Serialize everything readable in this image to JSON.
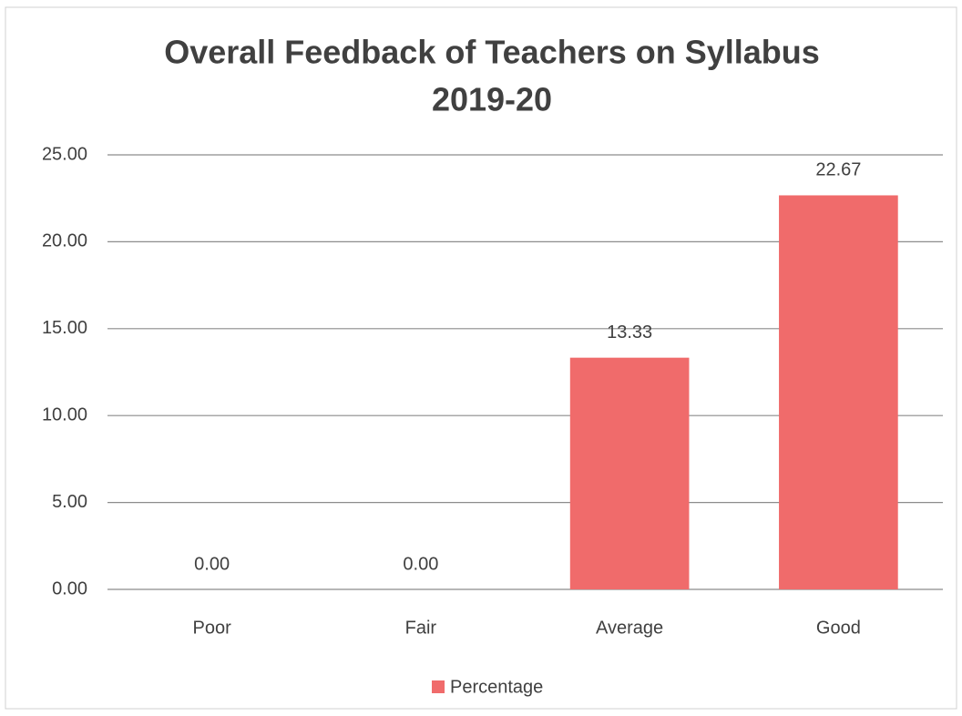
{
  "chart_data": {
    "type": "bar",
    "title": [
      "Overall Feedback of Teachers on Syllabus",
      "2019-20"
    ],
    "categories": [
      "Poor",
      "Fair",
      "Average",
      "Good"
    ],
    "series": [
      {
        "name": "Percentage",
        "color": "#f06b6b",
        "values": [
          0,
          0,
          13.33,
          22.67
        ],
        "value_labels": [
          "0.00",
          "0.00",
          "13.33",
          "22.67"
        ]
      }
    ],
    "ylim": [
      0,
      25
    ],
    "yticks": [
      {
        "value": 0,
        "label": "0.00"
      },
      {
        "value": 5,
        "label": "5.00"
      },
      {
        "value": 10,
        "label": "10.00"
      },
      {
        "value": 15,
        "label": "15.00"
      },
      {
        "value": 20,
        "label": "20.00"
      },
      {
        "value": 25,
        "label": "25.00"
      }
    ],
    "grid": true,
    "legend": "bottom"
  }
}
